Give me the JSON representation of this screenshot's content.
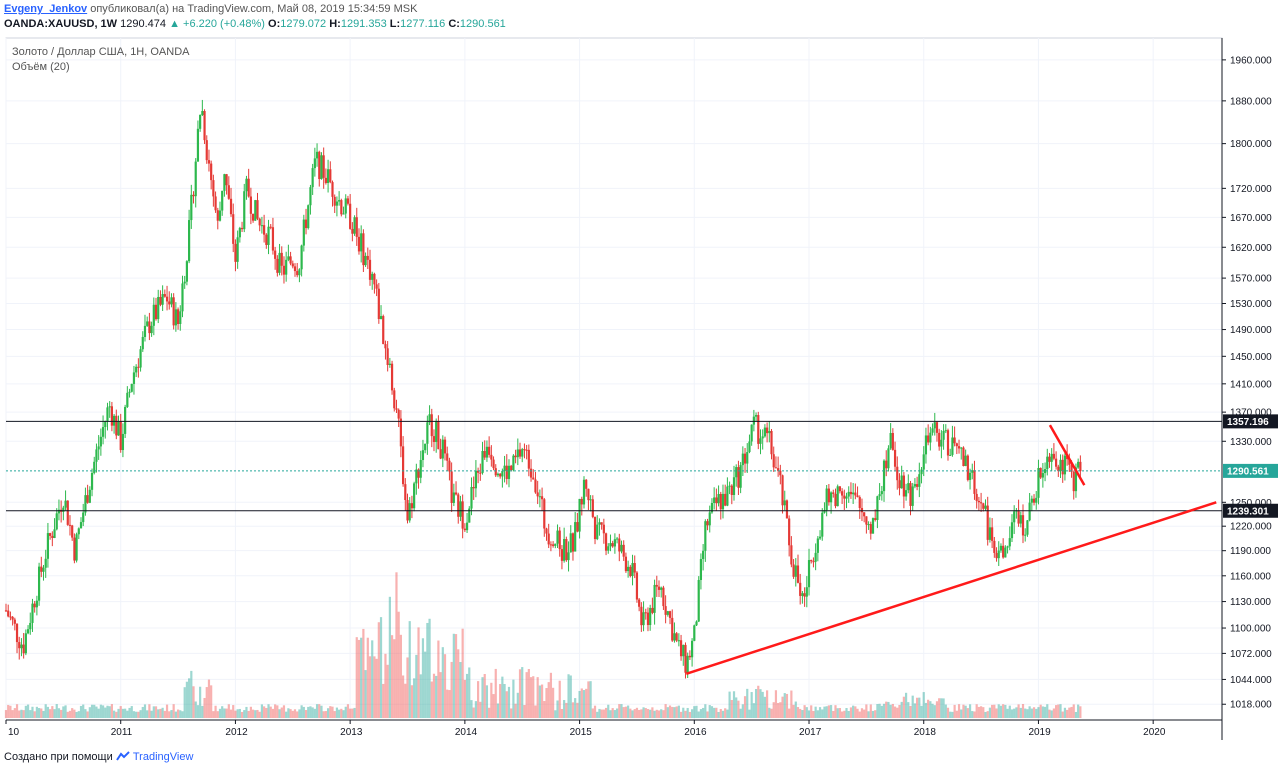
{
  "header": {
    "author": "Evgeny_Jenkov",
    "published": "опубликовал(а) на TradingView.com, Май 08, 2019 15:34:59 MSK",
    "symbol": "OANDA:XAUUSD, 1W",
    "last": "1290.474",
    "change": "▲ +6.220 (+0.48%)",
    "o_label": "O:",
    "o_val": "1279.072",
    "h_label": "H:",
    "h_val": "1291.353",
    "l_label": "L:",
    "l_val": "1277.116",
    "c_label": "C:",
    "c_val": "1290.561"
  },
  "panel": {
    "title": "Золото / Доллар США, 1Н, OANDA",
    "volume": "Объём (20)"
  },
  "footer": {
    "created_with": "Создано при помощи",
    "brand": "TradingView"
  },
  "colors": {
    "up": "#26a69a",
    "up_candle": "#2db84d",
    "down_candle": "#e53935",
    "trendline": "#ff1a1a",
    "level_line": "#131722",
    "current_line": "#26a69a"
  },
  "chart_data": {
    "type": "candlestick",
    "y_scale": "log",
    "y_ticks": [
      "1960.000",
      "1880.000",
      "1800.000",
      "1720.000",
      "1670.000",
      "1620.000",
      "1570.000",
      "1530.000",
      "1490.000",
      "1450.000",
      "1410.000",
      "1370.000",
      "1330.000",
      "1250.000",
      "1220.000",
      "1190.000",
      "1160.000",
      "1130.000",
      "1100.000",
      "1072.000",
      "1044.000",
      "1018.000"
    ],
    "x_ticks": [
      "10",
      "2011",
      "2012",
      "2013",
      "2014",
      "2015",
      "2016",
      "2017",
      "2018",
      "2019",
      "2020"
    ],
    "x_range": [
      2010.0,
      2020.6
    ],
    "levels": [
      {
        "price": 1357.196,
        "label": "1357.196",
        "style": "dark"
      },
      {
        "price": 1290.561,
        "label": "1290.561",
        "style": "current"
      },
      {
        "price": 1239.301,
        "label": "1239.301",
        "style": "dark"
      }
    ],
    "trendlines": [
      {
        "from": [
          2015.93,
          1050
        ],
        "to": [
          2020.55,
          1250
        ]
      },
      {
        "from": [
          2019.1,
          1352
        ],
        "to": [
          2019.4,
          1272
        ]
      }
    ],
    "price_anchors": [
      [
        2010.0,
        1120
      ],
      [
        2010.15,
        1080
      ],
      [
        2010.35,
        1190
      ],
      [
        2010.5,
        1260
      ],
      [
        2010.6,
        1190
      ],
      [
        2010.75,
        1290
      ],
      [
        2010.9,
        1380
      ],
      [
        2011.0,
        1330
      ],
      [
        2011.1,
        1420
      ],
      [
        2011.25,
        1500
      ],
      [
        2011.4,
        1540
      ],
      [
        2011.5,
        1500
      ],
      [
        2011.6,
        1650
      ],
      [
        2011.7,
        1880
      ],
      [
        2011.75,
        1790
      ],
      [
        2011.85,
        1650
      ],
      [
        2011.9,
        1760
      ],
      [
        2012.0,
        1600
      ],
      [
        2012.1,
        1720
      ],
      [
        2012.2,
        1660
      ],
      [
        2012.3,
        1640
      ],
      [
        2012.4,
        1580
      ],
      [
        2012.5,
        1600
      ],
      [
        2012.55,
        1590
      ],
      [
        2012.7,
        1770
      ],
      [
        2012.8,
        1740
      ],
      [
        2012.9,
        1700
      ],
      [
        2013.0,
        1670
      ],
      [
        2013.1,
        1620
      ],
      [
        2013.2,
        1570
      ],
      [
        2013.3,
        1470
      ],
      [
        2013.4,
        1380
      ],
      [
        2013.5,
        1230
      ],
      [
        2013.6,
        1300
      ],
      [
        2013.7,
        1360
      ],
      [
        2013.8,
        1320
      ],
      [
        2013.9,
        1250
      ],
      [
        2014.0,
        1230
      ],
      [
        2014.2,
        1330
      ],
      [
        2014.3,
        1290
      ],
      [
        2014.4,
        1290
      ],
      [
        2014.5,
        1320
      ],
      [
        2014.6,
        1290
      ],
      [
        2014.7,
        1220
      ],
      [
        2014.85,
        1190
      ],
      [
        2014.95,
        1200
      ],
      [
        2015.05,
        1280
      ],
      [
        2015.15,
        1210
      ],
      [
        2015.3,
        1200
      ],
      [
        2015.45,
        1170
      ],
      [
        2015.55,
        1100
      ],
      [
        2015.7,
        1150
      ],
      [
        2015.85,
        1080
      ],
      [
        2015.93,
        1060
      ],
      [
        2016.0,
        1090
      ],
      [
        2016.1,
        1220
      ],
      [
        2016.2,
        1250
      ],
      [
        2016.3,
        1260
      ],
      [
        2016.4,
        1290
      ],
      [
        2016.52,
        1350
      ],
      [
        2016.65,
        1330
      ],
      [
        2016.75,
        1270
      ],
      [
        2016.85,
        1180
      ],
      [
        2016.95,
        1130
      ],
      [
        2017.05,
        1200
      ],
      [
        2017.15,
        1250
      ],
      [
        2017.3,
        1270
      ],
      [
        2017.45,
        1240
      ],
      [
        2017.55,
        1220
      ],
      [
        2017.7,
        1330
      ],
      [
        2017.8,
        1280
      ],
      [
        2017.9,
        1260
      ],
      [
        2018.0,
        1320
      ],
      [
        2018.1,
        1340
      ],
      [
        2018.2,
        1330
      ],
      [
        2018.35,
        1300
      ],
      [
        2018.45,
        1270
      ],
      [
        2018.6,
        1200
      ],
      [
        2018.7,
        1180
      ],
      [
        2018.8,
        1230
      ],
      [
        2018.9,
        1220
      ],
      [
        2019.0,
        1280
      ],
      [
        2019.1,
        1320
      ],
      [
        2019.2,
        1300
      ],
      [
        2019.3,
        1280
      ],
      [
        2019.37,
        1290
      ]
    ]
  }
}
